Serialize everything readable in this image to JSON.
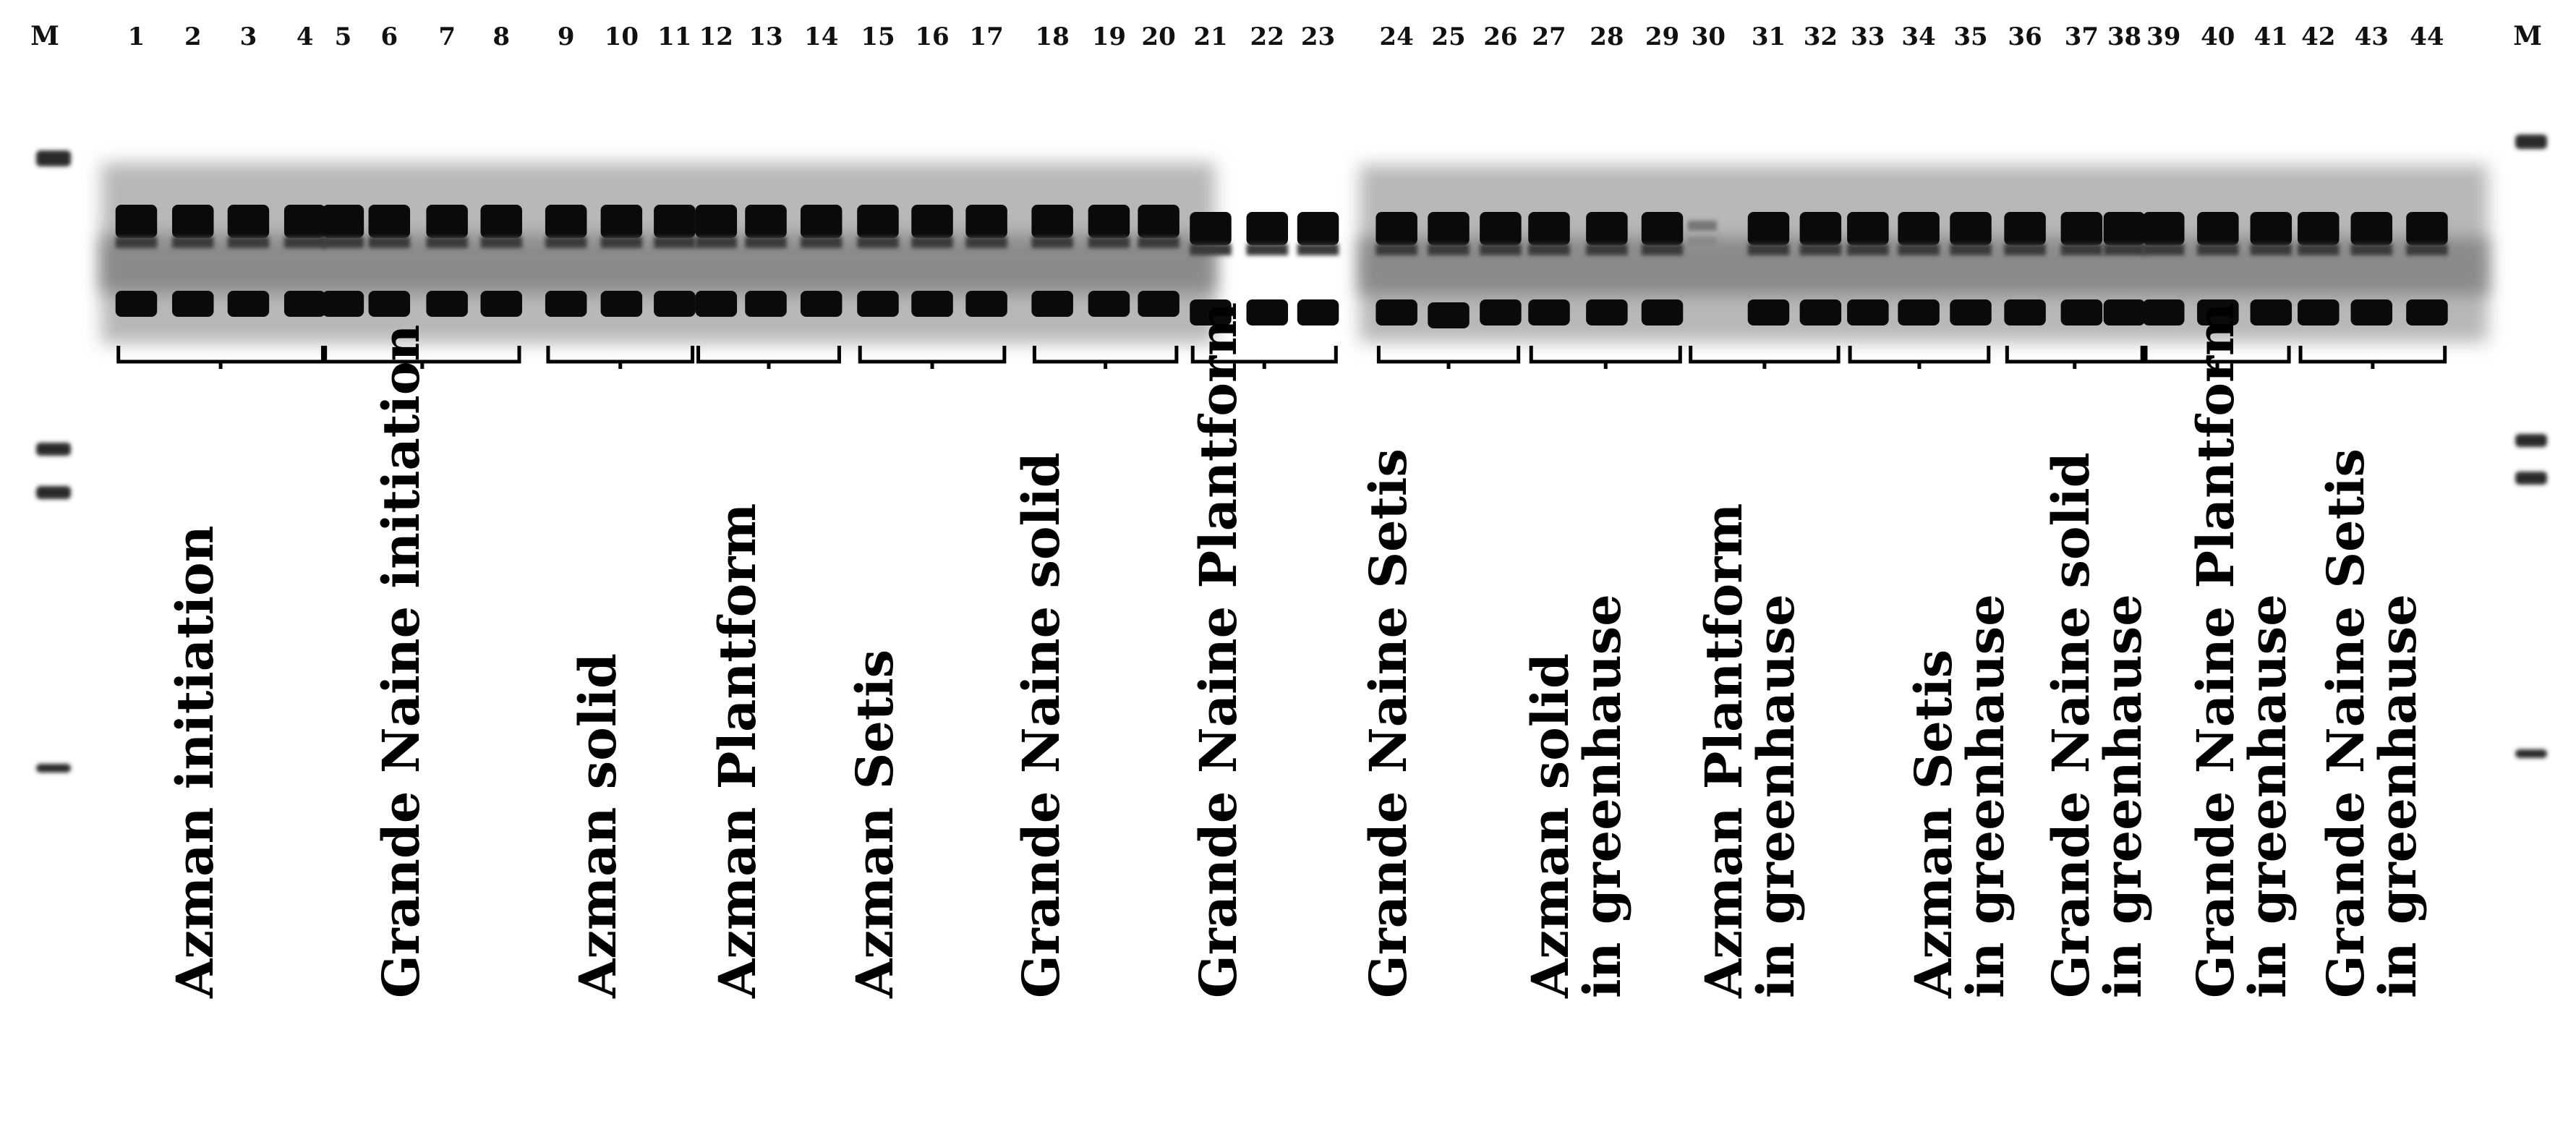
{
  "marker_label": "M",
  "lane_numbers": [
    "1",
    "2",
    "3",
    "4",
    "5",
    "6",
    "7",
    "8",
    "9",
    "10",
    "11",
    "12",
    "13",
    "14",
    "15",
    "16",
    "17",
    "18",
    "19",
    "20",
    "21",
    "22",
    "23",
    "24",
    "25",
    "26",
    "27",
    "28",
    "29",
    "30",
    "31",
    "32",
    "33",
    "34",
    "35",
    "36",
    "37",
    "38",
    "39",
    "40",
    "41",
    "42",
    "43",
    "44"
  ],
  "sample_groups": [
    {
      "lines": [
        "Azman initiation"
      ]
    },
    {
      "lines": [
        "Grande Naine initiation"
      ]
    },
    {
      "lines": [
        "Azman solid"
      ]
    },
    {
      "lines": [
        "Azman Plantform"
      ]
    },
    {
      "lines": [
        "Azman Setis"
      ]
    },
    {
      "lines": [
        "Grande Naine  solid"
      ]
    },
    {
      "lines": [
        "Grande Naine Plantform"
      ]
    },
    {
      "lines": [
        "Grande Naine Setis"
      ]
    },
    {
      "lines": [
        "Azman solid",
        "in greenhause"
      ]
    },
    {
      "lines": [
        "Azman Plantform",
        "in greenhause"
      ]
    },
    {
      "lines": [
        "Azman Setis",
        "in greenhause"
      ]
    },
    {
      "lines": [
        "Grande Naine  solid",
        "in greenhause"
      ]
    },
    {
      "lines": [
        "Grande Naine Plantform",
        "in greenhause"
      ]
    },
    {
      "lines": [
        "Grande Naine Setis",
        "in greenhause"
      ]
    }
  ],
  "colors": {
    "band": "#0a0a0a",
    "background": "#ffffff",
    "text": "#000000"
  }
}
